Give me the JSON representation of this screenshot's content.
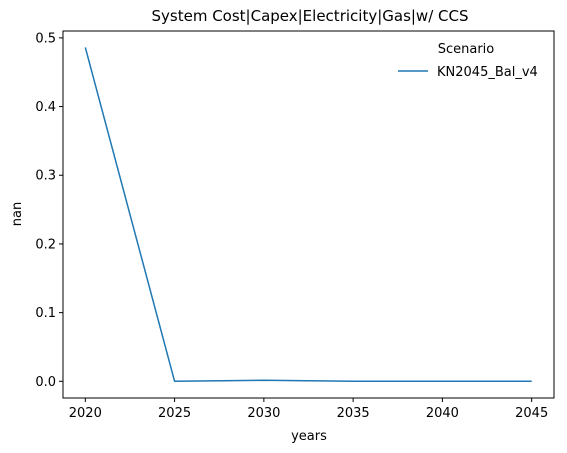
{
  "chart_data": {
    "type": "line",
    "title": "System Cost|Capex|Electricity|Gas|w/ CCS",
    "xlabel": "years",
    "ylabel": "nan",
    "x": [
      2020,
      2025,
      2030,
      2035,
      2040,
      2045
    ],
    "xticks": [
      "2020",
      "2025",
      "2030",
      "2035",
      "2040",
      "2045"
    ],
    "yticks": [
      "0.0",
      "0.1",
      "0.2",
      "0.3",
      "0.4",
      "0.5"
    ],
    "xlim": [
      2018.75,
      2046.25
    ],
    "ylim": [
      -0.0243,
      0.51
    ],
    "grid": false,
    "legend": {
      "title": "Scenario",
      "position": "top-right"
    },
    "series": [
      {
        "name": "KN2045_Bal_v4",
        "color": "#1f77b4",
        "values": [
          0.486,
          0.0,
          0.0015,
          0.0,
          0.0,
          0.0
        ]
      }
    ]
  }
}
